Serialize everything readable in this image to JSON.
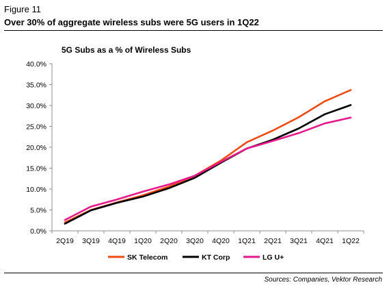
{
  "figure": {
    "label": "Figure 11",
    "title": "Over 30% of aggregate wireless subs were 5G users in 1Q22",
    "source": "Sources: Companies, Vektor Research"
  },
  "chart_data": {
    "type": "line",
    "title": "5G Subs as a % of Wireless Subs",
    "xlabel": "",
    "ylabel": "",
    "categories": [
      "2Q19",
      "3Q19",
      "4Q19",
      "1Q20",
      "2Q20",
      "3Q20",
      "4Q20",
      "1Q21",
      "2Q21",
      "3Q21",
      "4Q21",
      "1Q22"
    ],
    "ylim": [
      0,
      40
    ],
    "yticks": [
      0,
      5,
      10,
      15,
      20,
      25,
      30,
      35,
      40
    ],
    "ytick_labels": [
      "0.0%",
      "5.0%",
      "10.0%",
      "15.0%",
      "20.0%",
      "25.0%",
      "30.0%",
      "35.0%",
      "40.0%"
    ],
    "grid": false,
    "legend_position": "bottom",
    "series": [
      {
        "name": "SK Telecom",
        "color": "#ef4a12",
        "values": [
          2.0,
          5.0,
          6.8,
          8.5,
          10.6,
          13.2,
          16.8,
          21.2,
          24.0,
          27.2,
          31.0,
          33.7
        ]
      },
      {
        "name": "KT Corp",
        "color": "#000000",
        "values": [
          1.7,
          4.9,
          6.7,
          8.2,
          10.2,
          12.7,
          16.3,
          19.7,
          21.8,
          24.5,
          27.9,
          30.1
        ]
      },
      {
        "name": "LG U+",
        "color": "#e6198c",
        "values": [
          2.6,
          5.8,
          7.5,
          9.4,
          11.1,
          13.2,
          16.5,
          19.7,
          21.5,
          23.4,
          25.7,
          27.1
        ]
      }
    ]
  }
}
